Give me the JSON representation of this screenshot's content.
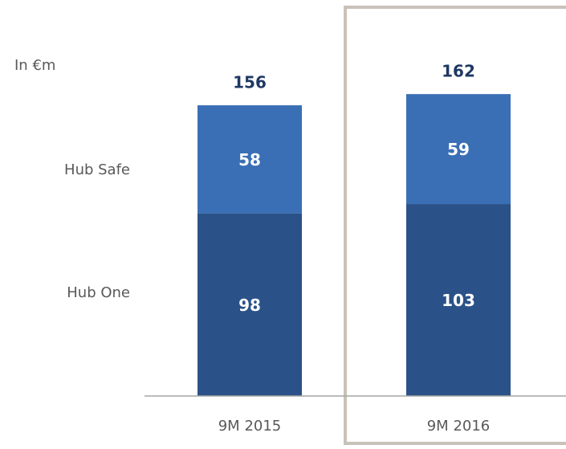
{
  "chart_data": {
    "type": "stacked-bar",
    "unit_label": "In €m",
    "categories": [
      "9M 2015",
      "9M 2016"
    ],
    "series": [
      {
        "name": "Hub One",
        "color": "#2b5288",
        "values": [
          98,
          103
        ]
      },
      {
        "name": "Hub Safe",
        "color": "#3a6fb5",
        "values": [
          58,
          59
        ]
      }
    ],
    "totals": [
      156,
      162
    ]
  }
}
